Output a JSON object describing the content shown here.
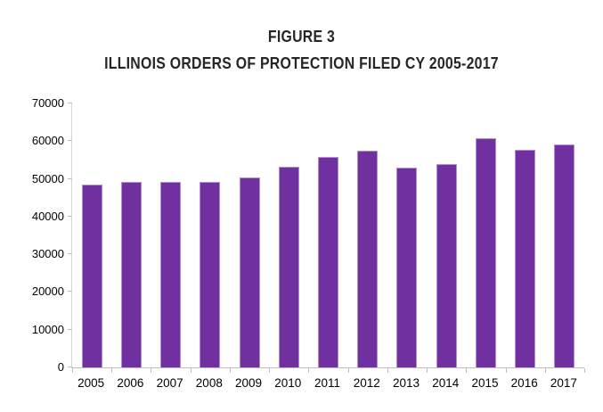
{
  "figure": {
    "label": "FIGURE 3",
    "title": "ILLINOIS ORDERS OF PROTECTION FILED CY 2005-2017"
  },
  "chart_data": {
    "type": "bar",
    "title": "FIGURE 3 — ILLINOIS ORDERS OF PROTECTION FILED CY 2005-2017",
    "categories": [
      "2005",
      "2006",
      "2007",
      "2008",
      "2009",
      "2010",
      "2011",
      "2012",
      "2013",
      "2014",
      "2015",
      "2016",
      "2017"
    ],
    "values": [
      48400,
      49300,
      49100,
      49250,
      50400,
      53300,
      55800,
      57400,
      52900,
      53900,
      60800,
      57600,
      59200
    ],
    "xlabel": "",
    "ylabel": "",
    "ylim": [
      0,
      70000
    ],
    "ytick_interval": 10000,
    "yticks": [
      "0",
      "10000",
      "20000",
      "30000",
      "40000",
      "50000",
      "60000",
      "70000"
    ],
    "grid": false,
    "legend": false,
    "bar_color": "#7030A0"
  },
  "colors": {
    "bar": "#7030A0",
    "bar_edge": "#AE8FD6",
    "axis_line": "#BFBFBF",
    "text": "#000000",
    "title_text": "#262626",
    "background": "#FFFFFF"
  }
}
